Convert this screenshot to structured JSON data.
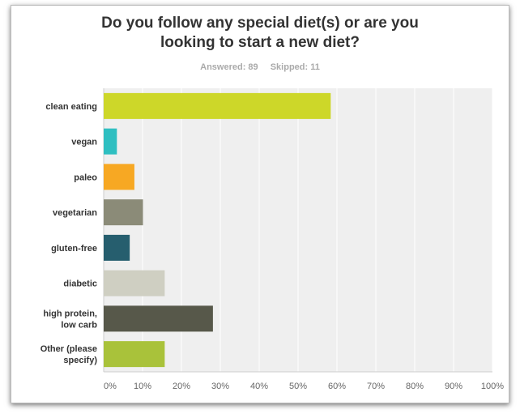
{
  "question": {
    "line1": "Do you follow any special diet(s) or are you",
    "line2": "looking to start a new diet?"
  },
  "stats": {
    "answered": "Answered: 89",
    "skipped": "Skipped: 11"
  },
  "chart_data": {
    "type": "bar",
    "orientation": "horizontal",
    "title": "Do you follow any special diet(s) or are you looking to start a new diet?",
    "categories": [
      [
        "clean eating"
      ],
      [
        "vegan"
      ],
      [
        "paleo"
      ],
      [
        "vegetarian"
      ],
      [
        "gluten-free"
      ],
      [
        "diabetic"
      ],
      [
        "high protein,",
        "low carb"
      ],
      [
        "Other (please",
        "specify)"
      ]
    ],
    "values": [
      58.4,
      3.4,
      7.9,
      10.1,
      6.7,
      15.7,
      28.1,
      15.7
    ],
    "colors": [
      "#cdd729",
      "#2fbfc1",
      "#f7a823",
      "#8b8b78",
      "#265e6e",
      "#cfcfc2",
      "#57584a",
      "#a9c23a"
    ],
    "xticks": [
      "0%",
      "10%",
      "20%",
      "30%",
      "40%",
      "50%",
      "60%",
      "70%",
      "80%",
      "90%",
      "100%"
    ],
    "xlim": [
      0,
      100
    ],
    "xlabel": "",
    "ylabel": "",
    "grid": true
  }
}
